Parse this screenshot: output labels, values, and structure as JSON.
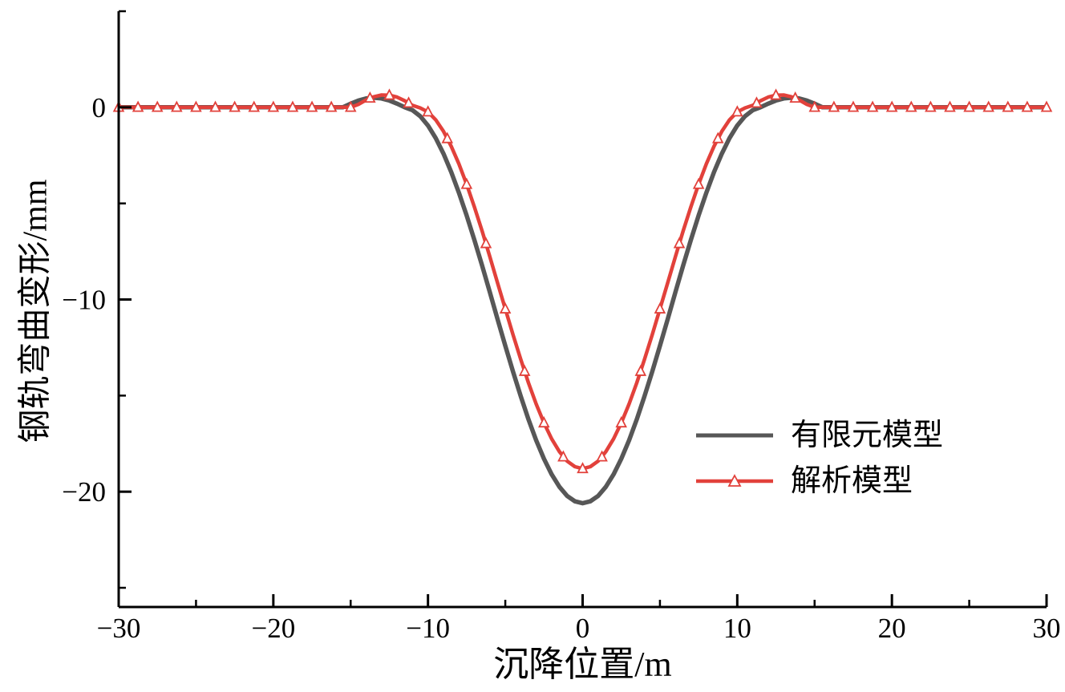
{
  "figure": {
    "background": "#ffffff",
    "axis_color": "#000000"
  },
  "chart_data": {
    "type": "line",
    "title": "",
    "xlabel": "沉降位置/m",
    "ylabel": "钢轨弯曲变形/mm",
    "xlim": [
      -30,
      30
    ],
    "ylim": [
      -26,
      5
    ],
    "x_major_ticks": [
      -30,
      -20,
      -10,
      0,
      10,
      20,
      30
    ],
    "x_minor_ticks": [
      -25,
      -15,
      -5,
      5,
      15,
      25
    ],
    "y_major_ticks": [
      0,
      -10,
      -20
    ],
    "y_minor_ticks": [
      5,
      -5,
      -15,
      -25
    ],
    "grid": false,
    "legend_position": "center-right",
    "series": [
      {
        "name": "有限元模型",
        "color": "#575757",
        "marker": "none",
        "x": [
          -30,
          -28,
          -26,
          -24,
          -22,
          -20,
          -18,
          -16,
          -15.5,
          -15,
          -14.5,
          -14,
          -13.5,
          -13,
          -12.5,
          -12,
          -11.5,
          -11,
          -10.5,
          -10,
          -9.5,
          -9,
          -8.5,
          -8,
          -7.5,
          -7,
          -6.5,
          -6,
          -5.5,
          -5,
          -4.5,
          -4,
          -3.5,
          -3,
          -2.5,
          -2,
          -1.5,
          -1,
          -0.5,
          0,
          0.5,
          1,
          1.5,
          2,
          2.5,
          3,
          3.5,
          4,
          4.5,
          5,
          5.5,
          6,
          6.5,
          7,
          7.5,
          8,
          8.5,
          9,
          9.5,
          10,
          10.5,
          11,
          11.5,
          12,
          12.5,
          13,
          13.5,
          14,
          14.5,
          15,
          15.5,
          16,
          18,
          20,
          22,
          24,
          26,
          28,
          30
        ],
        "y": [
          0,
          0,
          0,
          0,
          0,
          0,
          0,
          0,
          0,
          0.19,
          0.35,
          0.46,
          0.5,
          0.46,
          0.35,
          0.19,
          0,
          -0.15,
          -0.46,
          -0.95,
          -1.6,
          -2.41,
          -3.36,
          -4.44,
          -5.63,
          -6.9,
          -8.24,
          -9.62,
          -11.02,
          -12.41,
          -13.75,
          -15.04,
          -16.24,
          -17.33,
          -18.29,
          -19.1,
          -19.75,
          -20.22,
          -20.5,
          -20.6,
          -20.5,
          -20.22,
          -19.75,
          -19.1,
          -18.29,
          -17.33,
          -16.24,
          -15.04,
          -13.75,
          -12.41,
          -11.02,
          -9.62,
          -8.24,
          -6.9,
          -5.63,
          -4.44,
          -3.36,
          -2.41,
          -1.6,
          -0.95,
          -0.46,
          -0.15,
          0,
          0.19,
          0.35,
          0.46,
          0.5,
          0.46,
          0.35,
          0.19,
          0,
          0,
          0,
          0,
          0,
          0,
          0,
          0,
          0
        ]
      },
      {
        "name": "解析模型",
        "color": "#e2413b",
        "marker": "triangle-open",
        "x": [
          -30,
          -28,
          -26,
          -24,
          -22,
          -20,
          -18,
          -16,
          -15.5,
          -15,
          -14.5,
          -14,
          -13.5,
          -13,
          -12.5,
          -12,
          -11.5,
          -11,
          -10.5,
          -10,
          -9.5,
          -9,
          -8.5,
          -8,
          -7.5,
          -7,
          -6.5,
          -6,
          -5.5,
          -5,
          -4.5,
          -4,
          -3.5,
          -3,
          -2.5,
          -2,
          -1.5,
          -1,
          -0.5,
          0,
          0.5,
          1,
          1.5,
          2,
          2.5,
          3,
          3.5,
          4,
          4.5,
          5,
          5.5,
          6,
          6.5,
          7,
          7.5,
          8,
          8.5,
          9,
          9.5,
          10,
          10.5,
          11,
          11.5,
          12,
          12.5,
          13,
          13.5,
          14,
          14.5,
          15,
          15.5,
          16,
          18,
          20,
          22,
          24,
          26,
          28,
          30
        ],
        "y": [
          0,
          0,
          0,
          0,
          0,
          0,
          0,
          0,
          0,
          0,
          0.15,
          0.38,
          0.55,
          0.64,
          0.63,
          0.53,
          0.34,
          0.1,
          -0.03,
          -0.24,
          -0.65,
          -1.25,
          -2.02,
          -2.94,
          -4.01,
          -5.18,
          -6.44,
          -7.77,
          -9.13,
          -10.49,
          -11.83,
          -13.12,
          -14.34,
          -15.44,
          -16.42,
          -17.25,
          -17.92,
          -18.41,
          -18.7,
          -18.8,
          -18.7,
          -18.41,
          -17.92,
          -17.25,
          -16.42,
          -15.44,
          -14.34,
          -13.12,
          -11.83,
          -10.49,
          -9.13,
          -7.77,
          -6.44,
          -5.18,
          -4.01,
          -2.94,
          -2.02,
          -1.25,
          -0.65,
          -0.24,
          -0.03,
          0.1,
          0.34,
          0.53,
          0.63,
          0.64,
          0.55,
          0.38,
          0.15,
          0,
          0,
          0,
          0,
          0,
          0,
          0,
          0,
          0,
          0
        ],
        "markers": [
          [
            -30,
            0
          ],
          [
            -28.75,
            0
          ],
          [
            -27.5,
            0
          ],
          [
            -26.25,
            0
          ],
          [
            -25,
            0
          ],
          [
            -23.75,
            0
          ],
          [
            -22.5,
            0
          ],
          [
            -21.25,
            0
          ],
          [
            -20,
            0
          ],
          [
            -18.75,
            0
          ],
          [
            -17.5,
            0
          ],
          [
            -16.25,
            0
          ],
          [
            -15,
            0
          ],
          [
            -13.75,
            0.48
          ],
          [
            -12.5,
            0.63
          ],
          [
            -11.25,
            0.22
          ],
          [
            -10,
            -0.24
          ],
          [
            -8.75,
            -1.63
          ],
          [
            -7.5,
            -4.01
          ],
          [
            -6.25,
            -7.09
          ],
          [
            -5,
            -10.49
          ],
          [
            -3.75,
            -13.74
          ],
          [
            -2.5,
            -16.42
          ],
          [
            -1.25,
            -18.19
          ],
          [
            0,
            -18.8
          ],
          [
            1.25,
            -18.19
          ],
          [
            2.5,
            -16.42
          ],
          [
            3.75,
            -13.74
          ],
          [
            5,
            -10.49
          ],
          [
            6.25,
            -7.09
          ],
          [
            7.5,
            -4.01
          ],
          [
            8.75,
            -1.63
          ],
          [
            10,
            -0.24
          ],
          [
            11.25,
            0.22
          ],
          [
            12.5,
            0.63
          ],
          [
            13.75,
            0.48
          ],
          [
            15,
            0
          ],
          [
            16.25,
            0
          ],
          [
            17.5,
            0
          ],
          [
            18.75,
            0
          ],
          [
            20,
            0
          ],
          [
            21.25,
            0
          ],
          [
            22.5,
            0
          ],
          [
            23.75,
            0
          ],
          [
            25,
            0
          ],
          [
            26.25,
            0
          ],
          [
            27.5,
            0
          ],
          [
            28.75,
            0
          ],
          [
            30,
            0
          ]
        ]
      }
    ]
  },
  "legend": {
    "items": [
      {
        "label": "有限元模型"
      },
      {
        "label": "解析模型"
      }
    ]
  }
}
